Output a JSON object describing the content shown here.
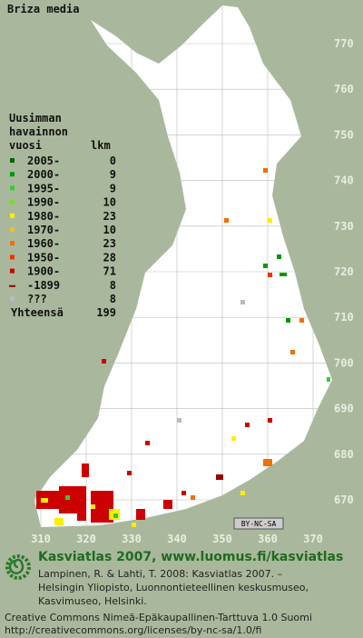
{
  "title": "Briza media",
  "legend": {
    "heading": [
      "Uusimman",
      "havainnon",
      "vuosi"
    ],
    "count_heading": "lkm",
    "entries": [
      {
        "label": "2005-",
        "count": 0,
        "color": "#006400"
      },
      {
        "label": "2000-",
        "count": 9,
        "color": "#009900"
      },
      {
        "label": "1995-",
        "count": 9,
        "color": "#33cc33"
      },
      {
        "label": "1990-",
        "count": 10,
        "color": "#77dd22"
      },
      {
        "label": "1980-",
        "count": 23,
        "color": "#ffee00"
      },
      {
        "label": "1970-",
        "count": 10,
        "color": "#f0c020"
      },
      {
        "label": "1960-",
        "count": 23,
        "color": "#f07000"
      },
      {
        "label": "1950-",
        "count": 28,
        "color": "#ee3300"
      },
      {
        "label": "1900-",
        "count": 71,
        "color": "#cc0000"
      },
      {
        "label": "-1899",
        "count": 8,
        "color": "#990000"
      },
      {
        "label": "???",
        "count": 8,
        "color": "#bbbbbb"
      }
    ],
    "total_label": "Yhteensä",
    "total": 199
  },
  "grid": {
    "y_labels": [
      770,
      760,
      750,
      740,
      730,
      720,
      710,
      700,
      690,
      680,
      670
    ],
    "x_labels": [
      310,
      320,
      330,
      340,
      350,
      360,
      370
    ]
  },
  "badge": "BY-NC-SA",
  "footer": {
    "title": "Kasviatlas 2007, www.luomus.fi/kasviatlas",
    "citation": [
      "Lampinen, R. & Lahti, T. 2008: Kasviatlas 2007. –",
      "Helsingin Yliopisto, Luonnontieteellinen keskusmuseo,",
      "Kasvimuseo, Helsinki."
    ],
    "license": [
      "Creative Commons Nimeä-Epäkaupallinen-Tarttuva 1.0 Suomi",
      "http://creativecommons.org/licenses/by-nc-sa/1.0/fi"
    ]
  }
}
